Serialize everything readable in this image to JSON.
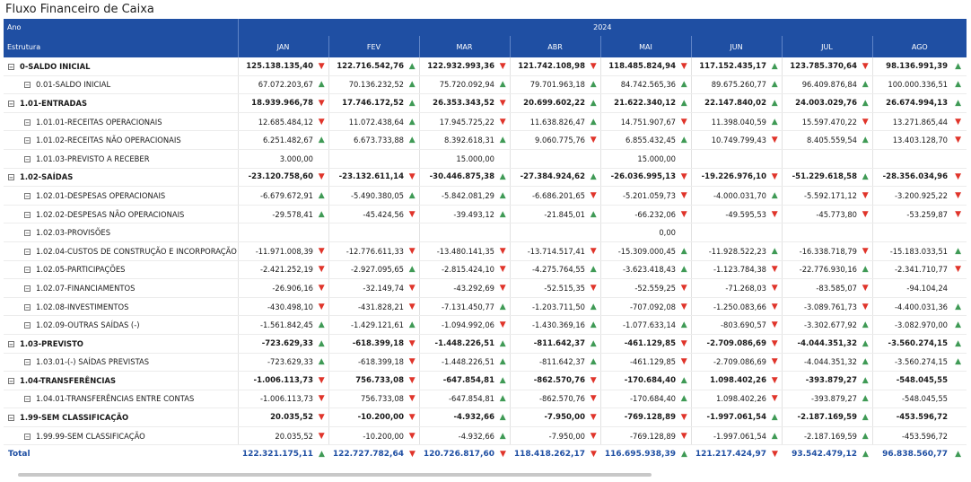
{
  "title": "Fluxo Financeiro de Caixa",
  "header": {
    "row1_label": "Ano",
    "year": "2024",
    "row2_label": "Estrutura",
    "months": [
      "JAN",
      "FEV",
      "MAR",
      "ABR",
      "MAI",
      "JUN",
      "JUL",
      "AGO"
    ]
  },
  "colors": {
    "header_bg": "#1f4fa3",
    "up": "#3f9a55",
    "down": "#e0342a",
    "total_text": "#1f4fa3"
  },
  "rows": [
    {
      "name": "0-SALDO INICIAL",
      "level": 0,
      "values": [
        "125.138.135,40",
        "122.716.542,76",
        "122.932.993,36",
        "121.742.108,98",
        "118.485.824,94",
        "117.152.435,17",
        "123.785.370,64",
        "98.136.991,39"
      ],
      "icons": [
        "down",
        "up",
        "down",
        "down",
        "down",
        "up",
        "down",
        "up"
      ]
    },
    {
      "name": "0.01-SALDO INICIAL",
      "level": 1,
      "values": [
        "67.072.203,67",
        "70.136.232,52",
        "75.720.092,94",
        "79.701.963,18",
        "84.742.565,36",
        "89.675.260,77",
        "96.409.876,84",
        "100.000.336,51"
      ],
      "icons": [
        "up",
        "up",
        "up",
        "up",
        "up",
        "up",
        "up",
        "up"
      ]
    },
    {
      "name": "1.01-ENTRADAS",
      "level": 0,
      "values": [
        "18.939.966,78",
        "17.746.172,52",
        "26.353.343,52",
        "20.699.602,22",
        "21.622.340,12",
        "22.147.840,02",
        "24.003.029,76",
        "26.674.994,13"
      ],
      "icons": [
        "down",
        "up",
        "down",
        "up",
        "up",
        "up",
        "up",
        "up"
      ]
    },
    {
      "name": "1.01.01-RECEITAS OPERACIONAIS",
      "level": 1,
      "values": [
        "12.685.484,12",
        "11.072.438,64",
        "17.945.725,22",
        "11.638.826,47",
        "14.751.907,67",
        "11.398.040,59",
        "15.597.470,22",
        "13.271.865,44"
      ],
      "icons": [
        "down",
        "up",
        "down",
        "up",
        "down",
        "up",
        "down",
        "down"
      ]
    },
    {
      "name": "1.01.02-RECEITAS NÃO OPERACIONAIS",
      "level": 1,
      "values": [
        "6.251.482,67",
        "6.673.733,88",
        "8.392.618,31",
        "9.060.775,76",
        "6.855.432,45",
        "10.749.799,43",
        "8.405.559,54",
        "13.403.128,70"
      ],
      "icons": [
        "up",
        "up",
        "up",
        "down",
        "up",
        "down",
        "up",
        "down"
      ]
    },
    {
      "name": "1.01.03-PREVISTO A RECEBER",
      "level": 1,
      "values": [
        "3.000,00",
        "",
        "15.000,00",
        "",
        "15.000,00",
        "",
        "",
        ""
      ],
      "icons": [
        "",
        "",
        "",
        "",
        "",
        "",
        "",
        ""
      ]
    },
    {
      "name": "1.02-SAÍDAS",
      "level": 0,
      "values": [
        "-23.120.758,60",
        "-23.132.611,14",
        "-30.446.875,38",
        "-27.384.924,62",
        "-26.036.995,13",
        "-19.226.976,10",
        "-51.229.618,58",
        "-28.356.034,96"
      ],
      "icons": [
        "down",
        "down",
        "up",
        "up",
        "down",
        "down",
        "up",
        "down"
      ]
    },
    {
      "name": "1.02.01-DESPESAS OPERACIONAIS",
      "level": 1,
      "values": [
        "-6.679.672,91",
        "-5.490.380,05",
        "-5.842.081,29",
        "-6.686.201,65",
        "-5.201.059,73",
        "-4.000.031,70",
        "-5.592.171,12",
        "-3.200.925,22"
      ],
      "icons": [
        "up",
        "up",
        "up",
        "down",
        "down",
        "up",
        "down",
        "down"
      ]
    },
    {
      "name": "1.02.02-DESPESAS NÃO OPERACIONAIS",
      "level": 1,
      "values": [
        "-29.578,41",
        "-45.424,56",
        "-39.493,12",
        "-21.845,01",
        "-66.232,06",
        "-49.595,53",
        "-45.773,80",
        "-53.259,87"
      ],
      "icons": [
        "up",
        "down",
        "up",
        "up",
        "down",
        "down",
        "down",
        "down"
      ]
    },
    {
      "name": "1.02.03-PROVISÕES",
      "level": 1,
      "values": [
        "",
        "",
        "",
        "",
        "0,00",
        "",
        "",
        ""
      ],
      "icons": [
        "",
        "",
        "",
        "",
        "",
        "",
        "",
        ""
      ]
    },
    {
      "name": "1.02.04-CUSTOS DE CONSTRUÇÃO E INCORPORAÇÃO",
      "level": 1,
      "values": [
        "-11.971.008,39",
        "-12.776.611,33",
        "-13.480.141,35",
        "-13.714.517,41",
        "-15.309.000,45",
        "-11.928.522,23",
        "-16.338.718,79",
        "-15.183.033,51"
      ],
      "icons": [
        "down",
        "down",
        "down",
        "down",
        "up",
        "up",
        "down",
        "up"
      ]
    },
    {
      "name": "1.02.05-PARTICIPAÇÕES",
      "level": 1,
      "values": [
        "-2.421.252,19",
        "-2.927.095,65",
        "-2.815.424,10",
        "-4.275.764,55",
        "-3.623.418,43",
        "-1.123.784,38",
        "-22.776.930,16",
        "-2.341.710,77"
      ],
      "icons": [
        "down",
        "up",
        "down",
        "up",
        "up",
        "down",
        "up",
        "down"
      ]
    },
    {
      "name": "1.02.07-FINANCIAMENTOS",
      "level": 1,
      "values": [
        "-26.906,16",
        "-32.149,74",
        "-43.292,69",
        "-52.515,35",
        "-52.559,25",
        "-71.268,03",
        "-83.585,07",
        "-94.104,24"
      ],
      "icons": [
        "down",
        "down",
        "down",
        "down",
        "down",
        "down",
        "down",
        ""
      ]
    },
    {
      "name": "1.02.08-INVESTIMENTOS",
      "level": 1,
      "values": [
        "-430.498,10",
        "-431.828,21",
        "-7.131.450,77",
        "-1.203.711,50",
        "-707.092,08",
        "-1.250.083,66",
        "-3.089.761,73",
        "-4.400.031,36"
      ],
      "icons": [
        "down",
        "down",
        "up",
        "up",
        "down",
        "down",
        "down",
        "up"
      ]
    },
    {
      "name": "1.02.09-OUTRAS SAÍDAS (-)",
      "level": 1,
      "values": [
        "-1.561.842,45",
        "-1.429.121,61",
        "-1.094.992,06",
        "-1.430.369,16",
        "-1.077.633,14",
        "-803.690,57",
        "-3.302.677,92",
        "-3.082.970,00"
      ],
      "icons": [
        "up",
        "up",
        "down",
        "up",
        "up",
        "down",
        "up",
        "up"
      ]
    },
    {
      "name": "1.03-PREVISTO",
      "level": 0,
      "values": [
        "-723.629,33",
        "-618.399,18",
        "-1.448.226,51",
        "-811.642,37",
        "-461.129,85",
        "-2.709.086,69",
        "-4.044.351,32",
        "-3.560.274,15"
      ],
      "icons": [
        "up",
        "down",
        "up",
        "up",
        "down",
        "down",
        "up",
        "up"
      ]
    },
    {
      "name": "1.03.01-(-) SAÍDAS PREVISTAS",
      "level": 1,
      "values": [
        "-723.629,33",
        "-618.399,18",
        "-1.448.226,51",
        "-811.642,37",
        "-461.129,85",
        "-2.709.086,69",
        "-4.044.351,32",
        "-3.560.274,15"
      ],
      "icons": [
        "up",
        "down",
        "up",
        "up",
        "down",
        "down",
        "up",
        "up"
      ]
    },
    {
      "name": "1.04-TRANSFERÊNCIAS",
      "level": 0,
      "values": [
        "-1.006.113,73",
        "756.733,08",
        "-647.854,81",
        "-862.570,76",
        "-170.684,40",
        "1.098.402,26",
        "-393.879,27",
        "-548.045,55"
      ],
      "icons": [
        "down",
        "down",
        "up",
        "down",
        "up",
        "down",
        "up",
        ""
      ]
    },
    {
      "name": "1.04.01-TRANSFERÊNCIAS ENTRE CONTAS",
      "level": 1,
      "values": [
        "-1.006.113,73",
        "756.733,08",
        "-647.854,81",
        "-862.570,76",
        "-170.684,40",
        "1.098.402,26",
        "-393.879,27",
        "-548.045,55"
      ],
      "icons": [
        "down",
        "down",
        "up",
        "down",
        "up",
        "down",
        "up",
        ""
      ]
    },
    {
      "name": "1.99-SEM CLASSIFICAÇÃO",
      "level": 0,
      "values": [
        "20.035,52",
        "-10.200,00",
        "-4.932,66",
        "-7.950,00",
        "-769.128,89",
        "-1.997.061,54",
        "-2.187.169,59",
        "-453.596,72"
      ],
      "icons": [
        "down",
        "down",
        "up",
        "down",
        "down",
        "up",
        "up",
        ""
      ]
    },
    {
      "name": "1.99.99-SEM CLASSIFICAÇÃO",
      "level": 1,
      "values": [
        "20.035,52",
        "-10.200,00",
        "-4.932,66",
        "-7.950,00",
        "-769.128,89",
        "-1.997.061,54",
        "-2.187.169,59",
        "-453.596,72"
      ],
      "icons": [
        "down",
        "down",
        "up",
        "down",
        "down",
        "up",
        "up",
        ""
      ]
    }
  ],
  "total": {
    "label": "Total",
    "values": [
      "122.321.175,11",
      "122.727.782,64",
      "120.726.817,60",
      "118.418.262,17",
      "116.695.938,39",
      "121.217.424,97",
      "93.542.479,12",
      "96.838.560,77"
    ],
    "icons": [
      "up",
      "down",
      "down",
      "down",
      "up",
      "down",
      "up",
      "up"
    ]
  }
}
